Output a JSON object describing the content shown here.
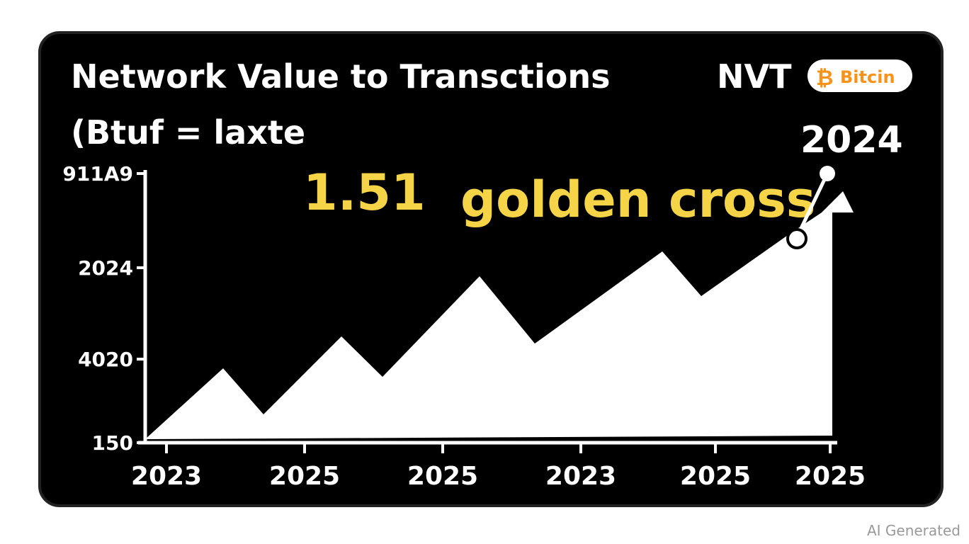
{
  "header": {
    "title": "Network Value to Transctions",
    "subtitle": "(Btuf = laxte",
    "tag": "NVT",
    "badge": "Bitcin",
    "badge_icon": "₿"
  },
  "annotations": {
    "year": "2024",
    "value": "1.51",
    "signal": "golden cross"
  },
  "y_axis": {
    "labels": [
      "911A9",
      "2024",
      "4020",
      "150"
    ]
  },
  "x_axis": {
    "labels": [
      "2023",
      "2025",
      "2025",
      "2023",
      "2025",
      "2025"
    ]
  },
  "footer": {
    "watermark": "AI Generated"
  }
}
